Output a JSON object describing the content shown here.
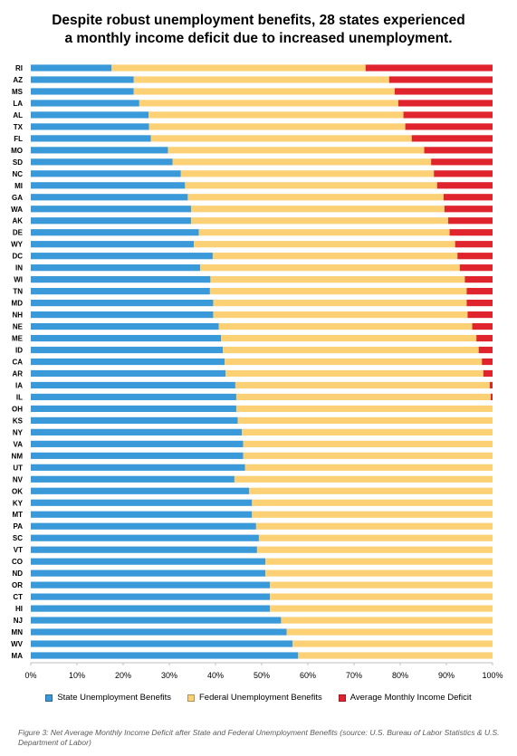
{
  "title_line1": "Despite robust unemployment benefits, 28 states experienced",
  "title_line2": "a monthly income deficit due to increased unemployment.",
  "caption": "Figure 3: Net Average Monthly Income Deficit after State and Federal Unemployment Benefits (source: U.S. Bureau of Labor Statistics & U.S. Department of Labor)",
  "colors": {
    "state": "#3a9ad9",
    "federal": "#fcd074",
    "deficit": "#e0242e"
  },
  "chart_data": {
    "type": "bar",
    "orientation": "horizontal",
    "stacked": true,
    "categories": [
      "RI",
      "AZ",
      "MS",
      "LA",
      "AL",
      "TX",
      "FL",
      "MO",
      "SD",
      "NC",
      "MI",
      "GA",
      "WA",
      "AK",
      "DE",
      "WY",
      "DC",
      "IN",
      "WI",
      "TN",
      "MD",
      "NH",
      "NE",
      "ME",
      "ID",
      "CA",
      "AR",
      "IA",
      "IL",
      "OH",
      "KS",
      "NY",
      "VA",
      "NM",
      "UT",
      "NV",
      "OK",
      "KY",
      "MT",
      "PA",
      "SC",
      "VT",
      "CO",
      "ND",
      "OR",
      "CT",
      "HI",
      "NJ",
      "MN",
      "WV",
      "MA"
    ],
    "series": [
      {
        "name": "State Unemployment Benefits",
        "values": [
          0.175,
          0.223,
          0.223,
          0.235,
          0.255,
          0.256,
          0.26,
          0.297,
          0.307,
          0.325,
          0.334,
          0.34,
          0.347,
          0.347,
          0.364,
          0.353,
          0.394,
          0.367,
          0.389,
          0.388,
          0.395,
          0.395,
          0.407,
          0.412,
          0.416,
          0.42,
          0.422,
          0.443,
          0.445,
          0.445,
          0.448,
          0.457,
          0.46,
          0.46,
          0.464,
          0.441,
          0.473,
          0.479,
          0.479,
          0.488,
          0.494,
          0.49,
          0.508,
          0.508,
          0.518,
          0.518,
          0.518,
          0.542,
          0.554,
          0.567,
          0.579
        ]
      },
      {
        "name": "Federal Unemployment Benefits",
        "values": [
          0.55,
          0.553,
          0.565,
          0.561,
          0.552,
          0.555,
          0.565,
          0.555,
          0.56,
          0.548,
          0.546,
          0.554,
          0.549,
          0.557,
          0.543,
          0.566,
          0.53,
          0.562,
          0.551,
          0.556,
          0.549,
          0.551,
          0.549,
          0.553,
          0.554,
          0.557,
          0.558,
          0.551,
          0.551,
          0.555,
          0.552,
          0.543,
          0.54,
          0.54,
          0.536,
          0.559,
          0.527,
          0.521,
          0.521,
          0.512,
          0.506,
          0.51,
          0.492,
          0.492,
          0.482,
          0.482,
          0.482,
          0.458,
          0.446,
          0.433,
          0.421
        ]
      },
      {
        "name": "Average Monthly Income Deficit",
        "values": [
          0.275,
          0.224,
          0.212,
          0.204,
          0.193,
          0.189,
          0.175,
          0.148,
          0.133,
          0.127,
          0.12,
          0.106,
          0.104,
          0.096,
          0.093,
          0.081,
          0.076,
          0.071,
          0.06,
          0.056,
          0.056,
          0.054,
          0.044,
          0.035,
          0.03,
          0.023,
          0.02,
          0.006,
          0.004,
          0,
          0,
          0,
          0,
          0,
          0,
          0,
          0,
          0,
          0,
          0,
          0,
          0,
          0,
          0,
          0,
          0,
          0,
          0,
          0,
          0,
          0
        ]
      }
    ],
    "x_ticks": [
      "0%",
      "10%",
      "20%",
      "30%",
      "40%",
      "50%",
      "60%",
      "70%",
      "80%",
      "90%",
      "100%"
    ],
    "xlim": [
      0,
      1
    ],
    "legend_position": "bottom",
    "grid": false
  }
}
